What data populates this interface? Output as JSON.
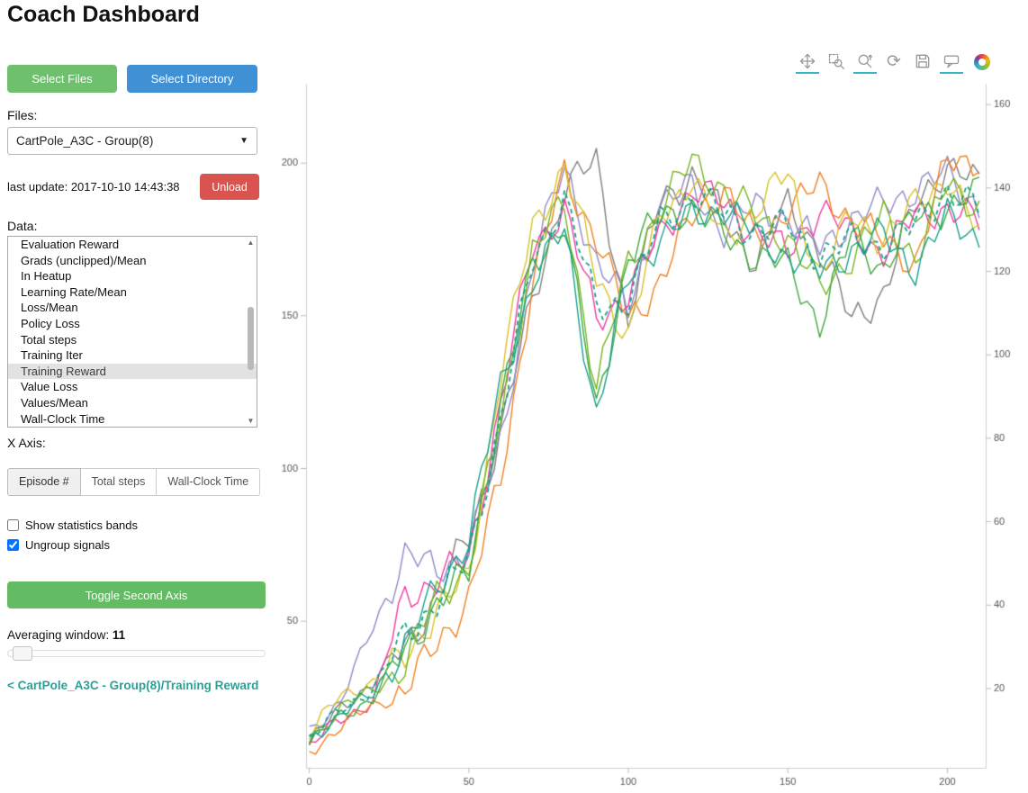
{
  "header": {
    "title": "Coach Dashboard"
  },
  "sidebar": {
    "select_files_label": "Select Files",
    "select_directory_label": "Select Directory",
    "files_label": "Files:",
    "files_selected": "CartPole_A3C - Group(8)",
    "last_update": "last update: 2017-10-10 14:43:38",
    "unload_label": "Unload",
    "data_label": "Data:",
    "data_items": [
      "Evaluation Reward",
      "Grads (unclipped)/Mean",
      "In Heatup",
      "Learning Rate/Mean",
      "Loss/Mean",
      "Policy Loss",
      "Total steps",
      "Training Iter",
      "Training Reward",
      "Value Loss",
      "Values/Mean",
      "Wall-Clock Time"
    ],
    "data_selected": "Training Reward",
    "x_axis_label": "X Axis:",
    "x_axis_options": [
      "Episode #",
      "Total steps",
      "Wall-Clock Time"
    ],
    "x_axis_selected": "Episode #",
    "checkbox_bands": {
      "label": "Show statistics bands",
      "checked": false
    },
    "checkbox_ungroup": {
      "label": "Ungroup signals",
      "checked": true
    },
    "toggle_second_axis_label": "Toggle Second Axis",
    "averaging_window_label": "Averaging window:",
    "averaging_window_value": "11",
    "breadcrumb": "< CartPole_A3C - Group(8)/Training Reward"
  },
  "toolbar": {
    "tools": [
      {
        "name": "pan",
        "active": true
      },
      {
        "name": "box-zoom",
        "active": false
      },
      {
        "name": "wheel-zoom",
        "active": true
      },
      {
        "name": "reset",
        "active": false
      },
      {
        "name": "save",
        "active": false
      },
      {
        "name": "hover",
        "active": true
      }
    ],
    "accent_color": "#3ab4c4"
  },
  "chart_data": {
    "type": "line",
    "title": "CartPole_A3C - Group(8)/Training Reward",
    "xlabel": "",
    "ylabel": "",
    "x_ticks": [
      0,
      50,
      100,
      150,
      200
    ],
    "left_y_ticks": [
      50,
      100,
      150,
      200
    ],
    "right_y_ticks": [
      20,
      40,
      60,
      80,
      100,
      120,
      140,
      160
    ],
    "x_range": [
      -1,
      212
    ],
    "left_y_range": [
      2,
      226
    ],
    "right_y_range": [
      1,
      165
    ],
    "grid": false,
    "legend": "none",
    "x": [
      0,
      10,
      20,
      30,
      40,
      50,
      60,
      70,
      80,
      90,
      100,
      110,
      120,
      130,
      140,
      150,
      160,
      170,
      180,
      190,
      200,
      210
    ],
    "series": [
      {
        "name": "gray",
        "color": "#7f7f7f",
        "dash": "solid",
        "values": [
          10,
          22,
          30,
          42,
          58,
          78,
          112,
          155,
          192,
          200,
          148,
          188,
          196,
          182,
          168,
          186,
          172,
          148,
          158,
          186,
          200,
          192
        ]
      },
      {
        "name": "purple",
        "color": "#8f89c7",
        "dash": "solid",
        "values": [
          14,
          24,
          48,
          72,
          66,
          74,
          108,
          168,
          198,
          168,
          152,
          186,
          192,
          178,
          186,
          182,
          172,
          182,
          186,
          192,
          196,
          186
        ]
      },
      {
        "name": "magenta",
        "color": "#ee3ba0",
        "dash": "solid",
        "values": [
          9,
          18,
          24,
          58,
          64,
          70,
          122,
          172,
          186,
          148,
          158,
          176,
          192,
          186,
          178,
          170,
          186,
          176,
          172,
          182,
          186,
          180
        ]
      },
      {
        "name": "orange",
        "color": "#ef8122",
        "dash": "solid",
        "values": [
          7,
          16,
          22,
          28,
          42,
          58,
          96,
          162,
          196,
          176,
          148,
          162,
          182,
          192,
          174,
          186,
          192,
          182,
          174,
          168,
          200,
          202
        ]
      },
      {
        "name": "gold",
        "color": "#d9c126",
        "dash": "solid",
        "values": [
          13,
          26,
          30,
          38,
          54,
          64,
          132,
          178,
          200,
          162,
          144,
          182,
          196,
          174,
          186,
          196,
          164,
          182,
          176,
          186,
          196,
          176
        ]
      },
      {
        "name": "olive",
        "color": "#77b41f",
        "dash": "solid",
        "values": [
          11,
          22,
          27,
          36,
          58,
          68,
          116,
          172,
          186,
          128,
          166,
          186,
          200,
          192,
          182,
          176,
          158,
          170,
          182,
          170,
          192,
          186
        ]
      },
      {
        "name": "green",
        "color": "#3fa73f",
        "dash": "solid",
        "values": [
          10,
          19,
          25,
          40,
          56,
          66,
          122,
          166,
          182,
          118,
          170,
          182,
          186,
          176,
          170,
          166,
          148,
          176,
          166,
          182,
          186,
          190
        ]
      },
      {
        "name": "teal",
        "color": "#16a08c",
        "dash": "solid",
        "values": [
          11,
          20,
          26,
          43,
          60,
          78,
          126,
          162,
          178,
          118,
          162,
          176,
          182,
          186,
          176,
          170,
          164,
          172,
          176,
          166,
          182,
          176
        ]
      },
      {
        "name": "mean (dashed)",
        "color": "#16a08c",
        "dash": "dashed",
        "values": [
          11,
          21,
          28,
          45,
          57,
          70,
          117,
          167,
          190,
          152,
          156,
          180,
          190,
          183,
          178,
          179,
          170,
          174,
          174,
          179,
          192,
          184
        ]
      }
    ]
  }
}
